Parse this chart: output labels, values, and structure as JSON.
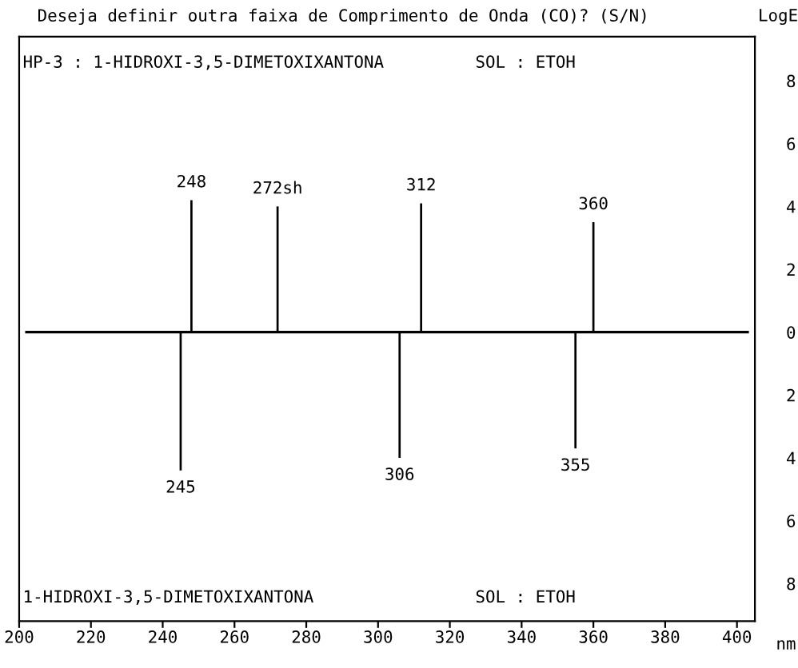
{
  "chart_data": {
    "type": "bar",
    "title": "Deseja definir outra faixa de Comprimento de Onda (CO)? (S/N)",
    "xlabel": "nm",
    "ylabel": "LogE",
    "series": [
      {
        "color": "#000000",
        "x": [
          245,
          248,
          272,
          306,
          312,
          355,
          360
        ],
        "values": [
          -4.4,
          4.2,
          4.0,
          -4.0,
          4.1,
          -3.7,
          3.5
        ]
      }
    ],
    "annotations": [
      {
        "text": "248",
        "x": 248,
        "y": 4.2
      },
      {
        "text": "272sh",
        "x": 272,
        "y": 4.0
      },
      {
        "text": "312",
        "x": 312,
        "y": 4.1
      },
      {
        "text": "360",
        "x": 360,
        "y": 3.5
      },
      {
        "text": "245",
        "x": 245,
        "y": -4.4
      },
      {
        "text": "306",
        "x": 306,
        "y": -4.0
      },
      {
        "text": "355",
        "x": 355,
        "y": -3.7
      },
      "HP-3 : 1-HIDROXI-3,5-DIMETOXIXANTONA",
      "SOL : ETOH",
      "1-HIDROXI-3,5-DIMETOXIXANTONA",
      "SOL : ETOH"
    ],
    "ref_lines": [
      {
        "axis": "y",
        "value": 0,
        "color": "#000000"
      }
    ],
    "xlim": [
      200,
      405
    ],
    "xticks": [
      200,
      220,
      240,
      260,
      280,
      300,
      320,
      340,
      360,
      380,
      400
    ],
    "ylim": [
      -9.2,
      9.4
    ],
    "yticks": [
      {
        "value": 8,
        "label": "8"
      },
      {
        "value": 6,
        "label": "6"
      },
      {
        "value": 4,
        "label": "4"
      },
      {
        "value": 2,
        "label": "2"
      },
      {
        "value": 0,
        "label": "0"
      },
      {
        "value": -2,
        "label": "2"
      },
      {
        "value": -4,
        "label": "4"
      },
      {
        "value": -6,
        "label": "6"
      },
      {
        "value": -8,
        "label": "8"
      }
    ],
    "grid": false,
    "legend": false
  }
}
